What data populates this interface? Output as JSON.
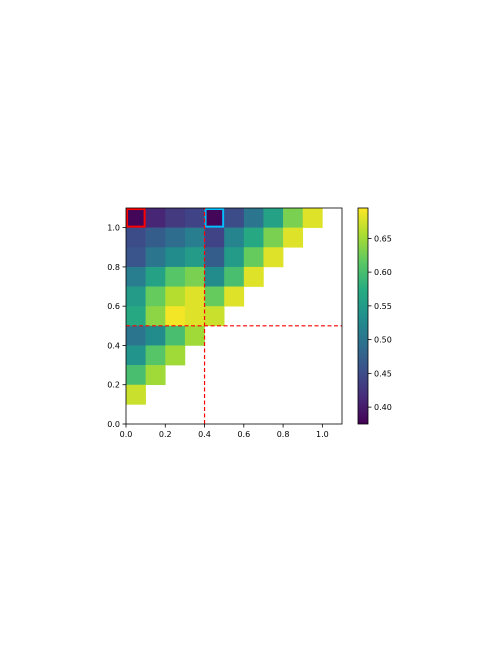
{
  "chart_data": [
    {
      "type": "heatmap",
      "title": "",
      "xlabel": "",
      "ylabel": "",
      "xlim": [
        0.0,
        1.1
      ],
      "ylim": [
        0.0,
        1.1
      ],
      "cell_size": 0.1,
      "colormap": "viridis",
      "value_range": [
        0.375,
        0.695
      ],
      "x_ticks": [
        0.0,
        0.2,
        0.4,
        0.6,
        0.8,
        1.0
      ],
      "x_tick_labels": [
        "0.0",
        "0.2",
        "0.4",
        "0.6",
        "0.8",
        "1.0"
      ],
      "y_ticks": [
        0.0,
        0.2,
        0.4,
        0.6,
        0.8,
        1.0
      ],
      "y_tick_labels": [
        "0.0",
        "0.2",
        "0.4",
        "0.6",
        "0.8",
        "1.0"
      ],
      "grid": false,
      "cells_note": "rows ordered top to bottom (row 0 = y range 1.0-1.1); each value covers x range [col*0.1, col*0.1+0.1]",
      "rows": [
        [
          0.38,
          0.41,
          0.43,
          0.44,
          0.38,
          0.45,
          0.5,
          0.56,
          0.63,
          0.68
        ],
        [
          0.45,
          0.47,
          0.49,
          0.51,
          0.44,
          0.52,
          0.57,
          0.63,
          0.68
        ],
        [
          0.46,
          0.5,
          0.53,
          0.55,
          0.47,
          0.55,
          0.62,
          0.68
        ],
        [
          0.51,
          0.56,
          0.61,
          0.63,
          0.53,
          0.6,
          0.68
        ],
        [
          0.55,
          0.62,
          0.66,
          0.68,
          0.62,
          0.68
        ],
        [
          0.57,
          0.64,
          0.69,
          0.68,
          0.67
        ],
        [
          0.5,
          0.53,
          0.6,
          0.65
        ],
        [
          0.54,
          0.61,
          0.65
        ],
        [
          0.6,
          0.65
        ],
        [
          0.67
        ]
      ],
      "highlights": [
        {
          "cell": [
            0.0,
            1.0
          ],
          "color": "#ff0000"
        },
        {
          "cell": [
            0.4,
            1.0
          ],
          "color": "#00bfff"
        }
      ],
      "reference_lines": [
        {
          "orientation": "vertical",
          "x": 0.4,
          "y_range": [
            0.0,
            1.1
          ],
          "color": "#ff0000",
          "style": "dashed"
        },
        {
          "orientation": "horizontal",
          "y": 0.5,
          "x_range": [
            0.0,
            1.1
          ],
          "color": "#ff0000",
          "style": "dashed"
        }
      ],
      "colorbar": {
        "ticks": [
          0.4,
          0.45,
          0.5,
          0.55,
          0.6,
          0.65
        ],
        "tick_labels": [
          "0.40",
          "0.45",
          "0.50",
          "0.55",
          "0.60",
          "0.65"
        ]
      }
    }
  ]
}
